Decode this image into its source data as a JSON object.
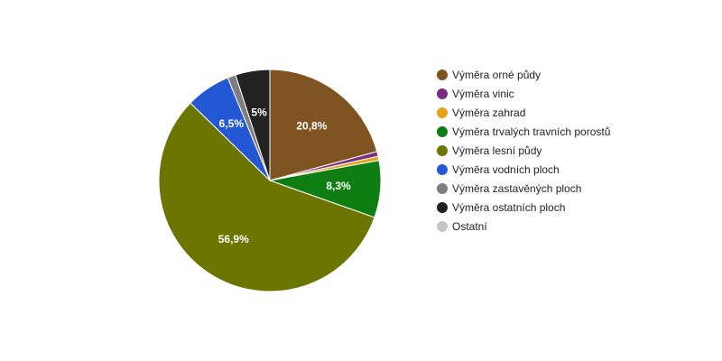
{
  "chart_data": {
    "type": "pie",
    "title": "",
    "legend_position": "right",
    "series": [
      {
        "name": "Výměra orné půdy",
        "value": 20.8,
        "label": "20,8%",
        "color": "#7f5420"
      },
      {
        "name": "Výměra vinic",
        "value": 0.7,
        "label": "",
        "color": "#7b2e7f"
      },
      {
        "name": "Výměra zahrad",
        "value": 0.6,
        "label": "",
        "color": "#e5a21a"
      },
      {
        "name": "Výměra trvalých travních porostů",
        "value": 8.3,
        "label": "8,3%",
        "color": "#0e7e12"
      },
      {
        "name": "Výměra lesní půdy",
        "value": 56.9,
        "label": "56,9%",
        "color": "#6b7500"
      },
      {
        "name": "Výměra vodních ploch",
        "value": 6.5,
        "label": "6,5%",
        "color": "#2457d3"
      },
      {
        "name": "Výměra zastavěných ploch",
        "value": 1.2,
        "label": "",
        "color": "#7f7f7f"
      },
      {
        "name": "Výměra ostatních ploch",
        "value": 5.0,
        "label": "5%",
        "color": "#222222"
      },
      {
        "name": "Ostatní",
        "value": 0.0,
        "label": "",
        "color": "#c6c6c6"
      }
    ]
  }
}
